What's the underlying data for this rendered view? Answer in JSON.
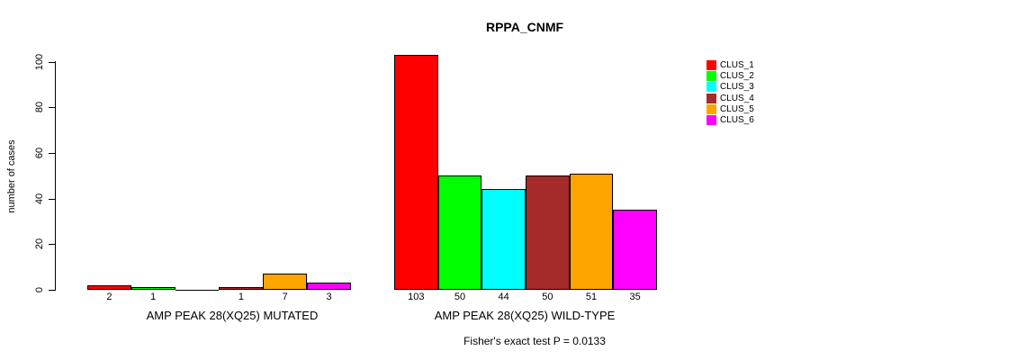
{
  "chart_data": {
    "type": "bar",
    "title": "RPPA_CNMF",
    "ylabel": "number of cases",
    "ylim": [
      0,
      103
    ],
    "yticks": [
      0,
      20,
      40,
      60,
      80,
      100
    ],
    "grid": false,
    "legend_position": "right",
    "clusters": [
      {
        "name": "CLUS_1",
        "color": "#FF0000"
      },
      {
        "name": "CLUS_2",
        "color": "#00FF00"
      },
      {
        "name": "CLUS_3",
        "color": "#00FFFF"
      },
      {
        "name": "CLUS_4",
        "color": "#A52A2A"
      },
      {
        "name": "CLUS_5",
        "color": "#FFA500"
      },
      {
        "name": "CLUS_6",
        "color": "#FF00FF"
      }
    ],
    "groups": [
      {
        "label": "AMP PEAK 28(XQ25) MUTATED",
        "values": [
          2,
          1,
          0,
          1,
          7,
          3
        ],
        "bar_labels": [
          "2",
          "1",
          "",
          "1",
          "7",
          "3"
        ]
      },
      {
        "label": "AMP PEAK 28(XQ25) WILD-TYPE",
        "values": [
          103,
          50,
          44,
          50,
          51,
          35
        ],
        "bar_labels": [
          "103",
          "50",
          "44",
          "50",
          "51",
          "35"
        ]
      }
    ],
    "annotation": "Fisher's exact test P = 0.0133"
  }
}
